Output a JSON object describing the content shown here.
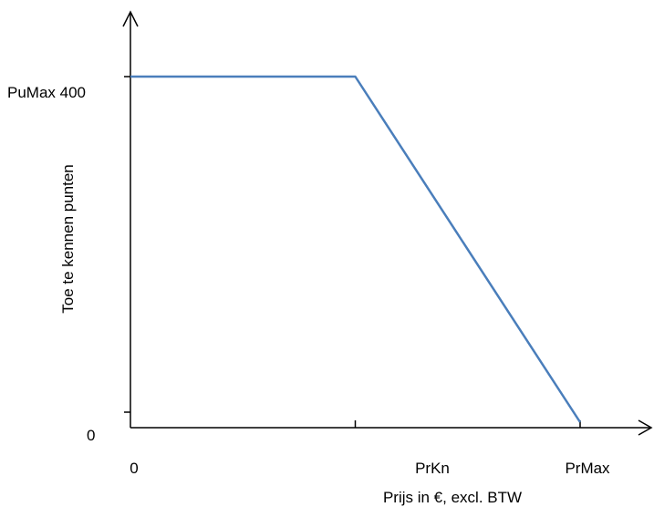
{
  "chart_data": {
    "type": "line",
    "title": "",
    "xlabel": "Prijs in €, excl. BTW",
    "ylabel": "Toe te kennen punten",
    "x_tick_labels": [
      "0",
      "PrKn",
      "PrMax"
    ],
    "y_tick_labels": [
      "0",
      "PuMax 400"
    ],
    "series": [
      {
        "x": [
          0,
          0.5,
          1.0
        ],
        "y": [
          400,
          400,
          0
        ]
      }
    ],
    "xlim": [
      0,
      1.0
    ],
    "ylim": [
      0,
      400
    ],
    "grid": false,
    "line_color": "#4a7ebb",
    "axis_color": "#000000"
  }
}
